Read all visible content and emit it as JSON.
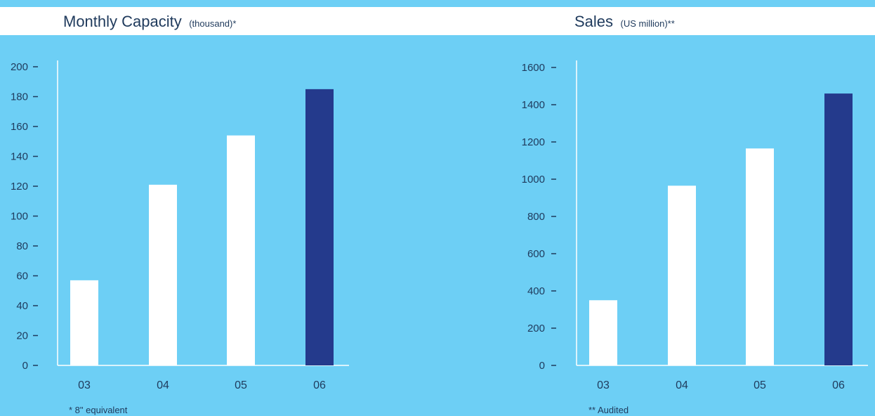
{
  "colors": {
    "background": "#6dcff5",
    "header_band": "#ffffff",
    "bar_default": "#ffffff",
    "bar_highlight": "#243a8c",
    "text": "#1f3a5c",
    "axis": "#ffffff"
  },
  "chart_data": [
    {
      "type": "bar",
      "title": "Monthly Capacity",
      "title_unit": "(thousand)*",
      "categories": [
        "03",
        "04",
        "05",
        "06"
      ],
      "values": [
        57,
        121,
        154,
        185
      ],
      "highlight_index": 3,
      "ylim": [
        0,
        200
      ],
      "yticks": [
        "0",
        "20",
        "40",
        "60",
        "80",
        "100",
        "120",
        "140",
        "160",
        "180",
        "200"
      ],
      "footnote": "* 8\" equivalent",
      "grid": false
    },
    {
      "type": "bar",
      "title": "Sales",
      "title_unit": "(US million)**",
      "categories": [
        "03",
        "04",
        "05",
        "06"
      ],
      "values": [
        350,
        965,
        1165,
        1460
      ],
      "highlight_index": 3,
      "ylim": [
        0,
        1600
      ],
      "yticks": [
        "0",
        "200",
        "400",
        "600",
        "800",
        "1000",
        "1200",
        "1400",
        "1600"
      ],
      "footnote": "** Audited",
      "grid": false
    }
  ]
}
